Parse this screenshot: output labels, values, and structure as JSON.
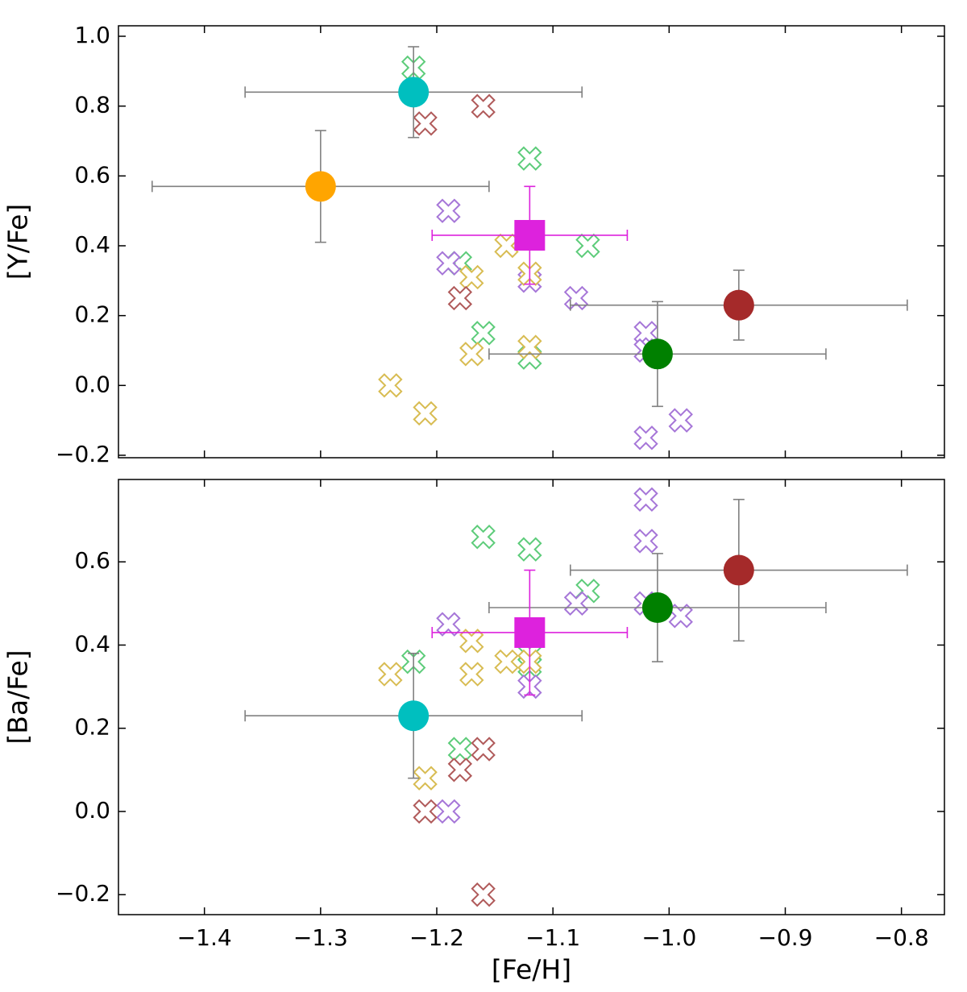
{
  "chart_data": [
    {
      "type": "scatter",
      "ylabel": "[Y/Fe]",
      "xlim": [
        -1.474,
        -0.763
      ],
      "ylim": [
        -0.207,
        1.03
      ],
      "xticks": [
        {
          "value": -1.4,
          "label": "−1.4"
        },
        {
          "value": -1.3,
          "label": "−1.3"
        },
        {
          "value": -1.2,
          "label": "−1.2"
        },
        {
          "value": -1.1,
          "label": "−1.1"
        },
        {
          "value": -1.0,
          "label": "−1.0"
        },
        {
          "value": -0.9,
          "label": "−0.9"
        },
        {
          "value": -0.8,
          "label": "−0.8"
        }
      ],
      "show_xtick_labels": false,
      "yticks": [
        {
          "value": -0.2,
          "label": "−0.2"
        },
        {
          "value": 0,
          "label": "0.0"
        },
        0.2,
        0.4,
        0.6,
        0.8,
        {
          "value": 1.0,
          "label": "1.0"
        }
      ],
      "series": [
        {
          "marker": "x",
          "color": "#5dcc7a",
          "x": [
            -1.22,
            -1.12,
            -1.07,
            -1.18,
            -1.16,
            -1.12
          ],
          "y": [
            0.91,
            0.65,
            0.4,
            0.35,
            0.15,
            0.08
          ]
        },
        {
          "marker": "x",
          "color": "#a676d8",
          "x": [
            -1.19,
            -1.19,
            -1.12,
            -1.08,
            -1.02,
            -1.02,
            -0.99,
            -1.02
          ],
          "y": [
            0.5,
            0.35,
            0.3,
            0.25,
            0.15,
            0.1,
            -0.1,
            -0.15
          ]
        },
        {
          "marker": "x",
          "color": "#d8bc52",
          "x": [
            -1.14,
            -1.17,
            -1.12,
            -1.17,
            -1.12,
            -1.24,
            -1.21
          ],
          "y": [
            0.4,
            0.31,
            0.32,
            0.09,
            0.11,
            0.0,
            -0.08
          ]
        },
        {
          "marker": "x",
          "color": "#b05a5a",
          "x": [
            -1.16,
            -1.21,
            -1.18
          ],
          "y": [
            0.8,
            0.75,
            0.25
          ]
        },
        {
          "marker": "o",
          "color": "#ffa500",
          "ecolor": "#808080",
          "x": [
            -1.3
          ],
          "y": [
            0.57
          ],
          "xerr": [
            0.145
          ],
          "yerr": [
            0.16
          ]
        },
        {
          "marker": "o",
          "color": "#00bfbf",
          "ecolor": "#808080",
          "x": [
            -1.22
          ],
          "y": [
            0.84
          ],
          "xerr": [
            0.145
          ],
          "yerr": [
            0.13
          ]
        },
        {
          "marker": "s",
          "color": "#dd22dd",
          "ecolor": "#dd22dd",
          "x": [
            -1.12
          ],
          "y": [
            0.43
          ],
          "xerr": [
            0.084
          ],
          "yerr": [
            0.14
          ]
        },
        {
          "marker": "o",
          "color": "#a52a2a",
          "ecolor": "#808080",
          "x": [
            -0.94
          ],
          "y": [
            0.23
          ],
          "xerr": [
            0.145
          ],
          "yerr": [
            0.1
          ]
        },
        {
          "marker": "o",
          "color": "#008000",
          "ecolor": "#808080",
          "x": [
            -1.01
          ],
          "y": [
            0.09
          ],
          "xerr": [
            0.145
          ],
          "yerr": [
            0.15
          ]
        }
      ]
    },
    {
      "type": "scatter",
      "ylabel": "[Ba/Fe]",
      "xlabel": "[Fe/H]",
      "xlim": [
        -1.474,
        -0.763
      ],
      "ylim": [
        -0.248,
        0.798
      ],
      "xticks": [
        {
          "value": -1.4,
          "label": "−1.4"
        },
        {
          "value": -1.3,
          "label": "−1.3"
        },
        {
          "value": -1.2,
          "label": "−1.2"
        },
        {
          "value": -1.1,
          "label": "−1.1"
        },
        {
          "value": -1.0,
          "label": "−1.0"
        },
        {
          "value": -0.9,
          "label": "−0.9"
        },
        {
          "value": -0.8,
          "label": "−0.8"
        }
      ],
      "show_xtick_labels": true,
      "yticks": [
        {
          "value": -0.2,
          "label": "−0.2"
        },
        {
          "value": 0,
          "label": "0.0"
        },
        0.2,
        0.4,
        0.6
      ],
      "series": [
        {
          "marker": "x",
          "color": "#5dcc7a",
          "x": [
            -1.16,
            -1.12,
            -1.07,
            -1.22,
            -1.12,
            -1.12,
            -1.18
          ],
          "y": [
            0.66,
            0.63,
            0.53,
            0.36,
            0.38,
            0.35,
            0.15
          ]
        },
        {
          "marker": "x",
          "color": "#a676d8",
          "x": [
            -1.02,
            -1.02,
            -1.08,
            -1.02,
            -0.99,
            -1.19,
            -1.12,
            -1.19
          ],
          "y": [
            0.75,
            0.65,
            0.5,
            0.5,
            0.47,
            0.45,
            0.3,
            0.0
          ]
        },
        {
          "marker": "x",
          "color": "#d8bc52",
          "x": [
            -1.17,
            -1.14,
            -1.12,
            -1.24,
            -1.17,
            -1.21
          ],
          "y": [
            0.41,
            0.36,
            0.36,
            0.33,
            0.33,
            0.08
          ]
        },
        {
          "marker": "x",
          "color": "#b05a5a",
          "x": [
            -1.16,
            -1.18,
            -1.21,
            -1.16
          ],
          "y": [
            0.15,
            0.1,
            0.0,
            -0.2
          ]
        },
        {
          "marker": "o",
          "color": "#a52a2a",
          "ecolor": "#808080",
          "x": [
            -0.94
          ],
          "y": [
            0.58
          ],
          "xerr": [
            0.145
          ],
          "yerr": [
            0.17
          ]
        },
        {
          "marker": "o",
          "color": "#008000",
          "ecolor": "#808080",
          "x": [
            -1.01
          ],
          "y": [
            0.49
          ],
          "xerr": [
            0.145
          ],
          "yerr": [
            0.13
          ]
        },
        {
          "marker": "s",
          "color": "#dd22dd",
          "ecolor": "#dd22dd",
          "x": [
            -1.12
          ],
          "y": [
            0.43
          ],
          "xerr": [
            0.084
          ],
          "yerr": [
            0.15
          ]
        },
        {
          "marker": "o",
          "color": "#00bfbf",
          "ecolor": "#808080",
          "x": [
            -1.22
          ],
          "y": [
            0.23
          ],
          "xerr": [
            0.145
          ],
          "yerr": [
            0.15
          ]
        }
      ]
    }
  ]
}
